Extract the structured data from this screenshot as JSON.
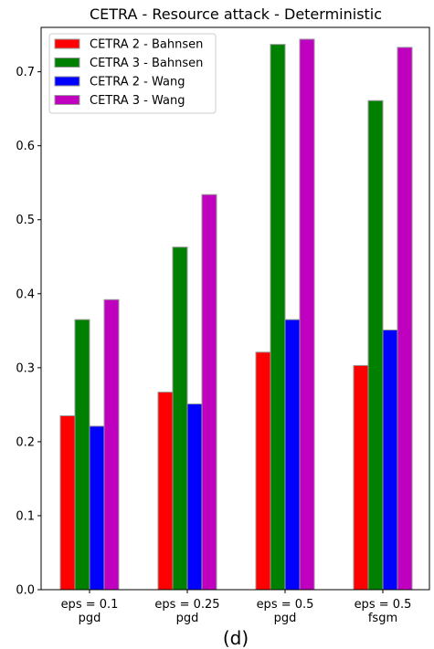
{
  "chart_data": {
    "type": "bar",
    "title": "CETRA - Resource attack - Deterministic",
    "caption": "(d)",
    "categories": [
      [
        "eps = 0.1",
        "pgd"
      ],
      [
        "eps = 0.25",
        "pgd"
      ],
      [
        "eps = 0.5",
        "pgd"
      ],
      [
        "eps = 0.5",
        "fsgm"
      ]
    ],
    "series": [
      {
        "name": "CETRA 2 - Bahnsen",
        "color": "#ff0000",
        "values": [
          0.235,
          0.267,
          0.321,
          0.303
        ]
      },
      {
        "name": "CETRA 3 - Bahnsen",
        "color": "#008000",
        "values": [
          0.365,
          0.463,
          0.737,
          0.661
        ]
      },
      {
        "name": "CETRA 2 - Wang",
        "color": "#0000ff",
        "values": [
          0.221,
          0.251,
          0.365,
          0.351
        ]
      },
      {
        "name": "CETRA 3 - Wang",
        "color": "#bf00bf",
        "values": [
          0.392,
          0.534,
          0.744,
          0.733
        ]
      }
    ],
    "ylim": [
      0,
      0.76
    ],
    "yticks": [
      "0.0",
      "0.1",
      "0.2",
      "0.3",
      "0.4",
      "0.5",
      "0.6",
      "0.7"
    ],
    "legend_position": "top-left",
    "grid": false
  }
}
